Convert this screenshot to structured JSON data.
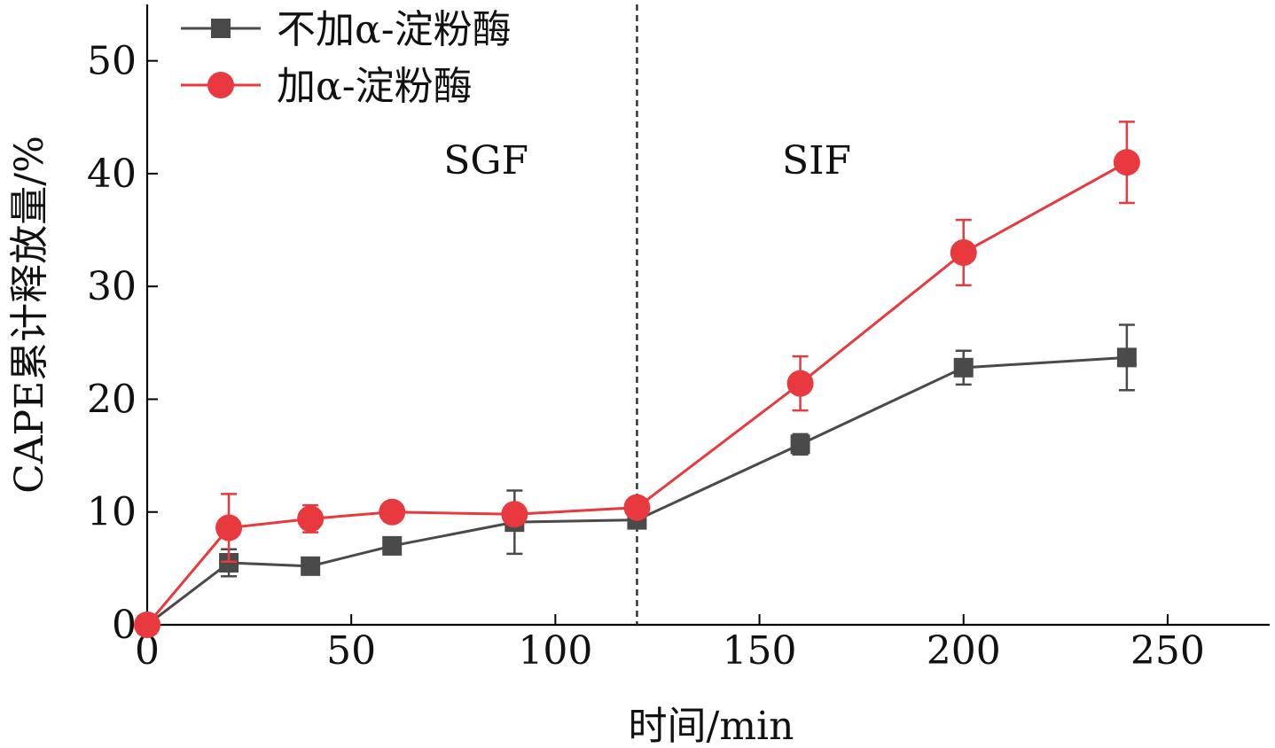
{
  "chart_data": {
    "type": "line",
    "xlabel": "时间/min",
    "ylabel": "CAPE累计释放量/%",
    "xlim": [
      0,
      275
    ],
    "ylim": [
      0,
      55
    ],
    "xticks": [
      0,
      50,
      100,
      150,
      200,
      250
    ],
    "yticks": [
      0,
      10,
      20,
      30,
      40,
      50
    ],
    "divider_x": 120,
    "regions": [
      {
        "label": "SGF",
        "x": 83
      },
      {
        "label": "SIF",
        "x": 164
      }
    ],
    "legend_position": "top-left",
    "grid": false,
    "series": [
      {
        "name": "不加α-淀粉酶",
        "color": "#4a4a4a",
        "marker": "square",
        "x": [
          0,
          20,
          40,
          60,
          90,
          120,
          160,
          200,
          240
        ],
        "y": [
          0,
          5.5,
          5.2,
          7.0,
          9.1,
          9.3,
          16.0,
          22.8,
          23.7
        ],
        "err": [
          0,
          1.2,
          0.3,
          0.4,
          2.8,
          0.4,
          0.9,
          1.5,
          2.9
        ]
      },
      {
        "name": "加α-淀粉酶",
        "color": "#e8393f",
        "marker": "circle",
        "x": [
          0,
          20,
          40,
          60,
          90,
          120,
          160,
          200,
          240
        ],
        "y": [
          0,
          8.6,
          9.4,
          10.0,
          9.8,
          10.4,
          21.4,
          33.0,
          41.0
        ],
        "err": [
          0,
          3.0,
          1.2,
          0.5,
          0.6,
          0.5,
          2.4,
          2.9,
          3.6
        ]
      }
    ]
  }
}
